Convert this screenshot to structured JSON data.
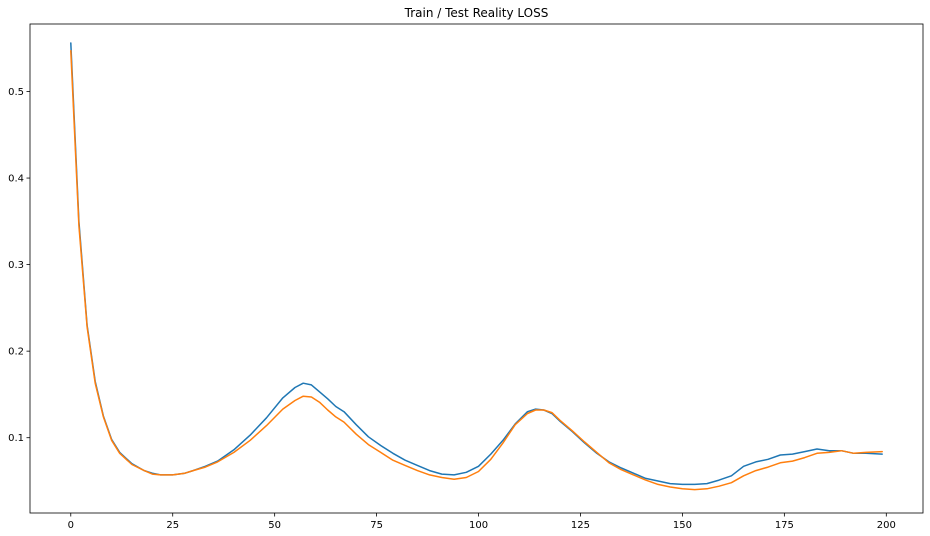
{
  "chart_data": {
    "type": "line",
    "title": "Train / Test Reality LOSS",
    "xlabel": "",
    "ylabel": "",
    "xlim": [
      -10,
      209
    ],
    "ylim": [
      0.013,
      0.578
    ],
    "xticks": [
      0,
      25,
      50,
      75,
      100,
      125,
      150,
      175,
      200
    ],
    "yticks": [
      0.1,
      0.2,
      0.3,
      0.4,
      0.5
    ],
    "grid": false,
    "legend": "none",
    "series": [
      {
        "color": "#1f77b4",
        "x": [
          0,
          2,
          4,
          6,
          8,
          10,
          12,
          15,
          18,
          20,
          22,
          25,
          28,
          30,
          33,
          36,
          40,
          44,
          48,
          52,
          55,
          57,
          59,
          61,
          63,
          65,
          67,
          70,
          73,
          76,
          79,
          82,
          85,
          88,
          91,
          94,
          97,
          100,
          103,
          106,
          109,
          112,
          114,
          116,
          118,
          120,
          123,
          126,
          129,
          132,
          135,
          138,
          141,
          144,
          147,
          150,
          153,
          156,
          159,
          162,
          165,
          168,
          171,
          174,
          177,
          180,
          183,
          186,
          189,
          192,
          195,
          199
        ],
        "y": [
          0.556,
          0.35,
          0.23,
          0.165,
          0.125,
          0.098,
          0.083,
          0.07,
          0.062,
          0.059,
          0.057,
          0.057,
          0.059,
          0.062,
          0.067,
          0.073,
          0.086,
          0.103,
          0.123,
          0.146,
          0.158,
          0.163,
          0.161,
          0.153,
          0.145,
          0.136,
          0.13,
          0.115,
          0.101,
          0.091,
          0.082,
          0.074,
          0.068,
          0.062,
          0.058,
          0.057,
          0.06,
          0.067,
          0.081,
          0.097,
          0.116,
          0.13,
          0.133,
          0.132,
          0.128,
          0.119,
          0.107,
          0.094,
          0.082,
          0.072,
          0.065,
          0.059,
          0.053,
          0.05,
          0.047,
          0.046,
          0.046,
          0.047,
          0.051,
          0.056,
          0.067,
          0.072,
          0.075,
          0.08,
          0.081,
          0.084,
          0.087,
          0.085,
          0.085,
          0.082,
          0.082,
          0.081
        ]
      },
      {
        "color": "#ff7f0e",
        "x": [
          0,
          2,
          4,
          6,
          8,
          10,
          12,
          15,
          18,
          20,
          22,
          25,
          28,
          30,
          33,
          36,
          40,
          44,
          48,
          52,
          55,
          57,
          59,
          61,
          63,
          65,
          67,
          70,
          73,
          76,
          79,
          82,
          85,
          88,
          91,
          94,
          97,
          100,
          103,
          106,
          109,
          112,
          114,
          116,
          118,
          120,
          123,
          126,
          129,
          132,
          135,
          138,
          141,
          144,
          147,
          150,
          153,
          156,
          159,
          162,
          165,
          168,
          171,
          174,
          177,
          180,
          183,
          186,
          189,
          192,
          195,
          199
        ],
        "y": [
          0.547,
          0.345,
          0.228,
          0.163,
          0.124,
          0.097,
          0.082,
          0.069,
          0.062,
          0.058,
          0.057,
          0.057,
          0.059,
          0.062,
          0.066,
          0.072,
          0.083,
          0.097,
          0.114,
          0.133,
          0.143,
          0.148,
          0.147,
          0.141,
          0.132,
          0.124,
          0.118,
          0.104,
          0.092,
          0.083,
          0.074,
          0.068,
          0.062,
          0.057,
          0.054,
          0.052,
          0.054,
          0.061,
          0.075,
          0.094,
          0.115,
          0.128,
          0.132,
          0.132,
          0.129,
          0.12,
          0.108,
          0.095,
          0.083,
          0.071,
          0.063,
          0.057,
          0.051,
          0.046,
          0.043,
          0.041,
          0.04,
          0.041,
          0.044,
          0.048,
          0.056,
          0.062,
          0.066,
          0.071,
          0.073,
          0.077,
          0.082,
          0.083,
          0.085,
          0.082,
          0.083,
          0.084
        ]
      }
    ]
  }
}
